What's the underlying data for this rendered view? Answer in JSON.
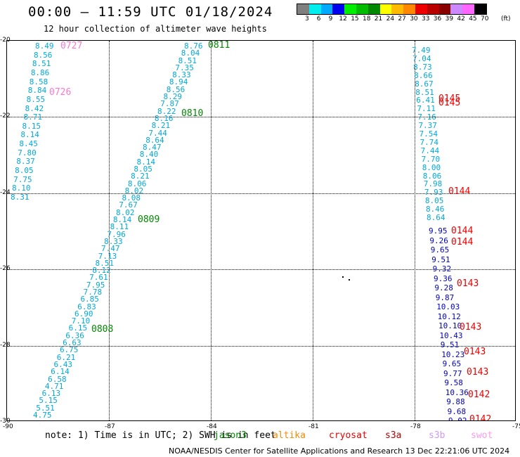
{
  "title": "00:00 – 11:59 UTC 01/18/2024",
  "subtitle": "12 hour collection of altimeter wave heights",
  "legend": {
    "labels": [
      "3",
      "6",
      "9",
      "12",
      "15",
      "18",
      "21",
      "24",
      "27",
      "30",
      "33",
      "36",
      "39",
      "42",
      "45",
      "70"
    ],
    "unit": "(ft)",
    "colors": [
      "#808080",
      "#00eeee",
      "#00aaff",
      "#0000ee",
      "#00ee00",
      "#00bb00",
      "#008800",
      "#ffff00",
      "#ffbb00",
      "#ff8800",
      "#ee0000",
      "#bb0000",
      "#880000",
      "#cc88ff",
      "#ff66ff",
      "#000000"
    ]
  },
  "axes": {
    "x_ticks": [
      "-90",
      "-87",
      "-84",
      "-81",
      "-78",
      "-75"
    ],
    "y_ticks": [
      "-20",
      "-22",
      "-24",
      "-26",
      "-28",
      "-30"
    ]
  },
  "note": "note:  1) Time is in UTC; 2) SWH is in feet",
  "satellites": [
    {
      "name": "jason3",
      "color": "#008800"
    },
    {
      "name": "altika",
      "color": "#ff8800"
    },
    {
      "name": "cryosat",
      "color": "#ee0000"
    },
    {
      "name": "s3a",
      "color": "#bb0000"
    },
    {
      "name": "s3b",
      "color": "#cc99ff"
    },
    {
      "name": "swot",
      "color": "#ff99ee"
    }
  ],
  "credit": "NOAA/NESDIS Center for Satellite Applications and Research    13 Dec 22:21:06 UTC 2024",
  "track_a": {
    "color": "#00aadd",
    "values": [
      "8.49",
      "8.56",
      "8.51",
      "8.86",
      "8.58",
      "8.84",
      "8.55",
      "8.42",
      "8.71",
      "8.15",
      "8.14",
      "8.45",
      "7.80",
      "8.37",
      "8.05",
      "7.75",
      "8.10",
      "8.31"
    ]
  },
  "track_b": {
    "color": "#00aadd",
    "values": [
      "8.76",
      "8.04",
      "8.51",
      "7.35",
      "8.33",
      "8.94",
      "8.56",
      "8.29",
      "7.87",
      "8.22",
      "8.16",
      "8.21",
      "7.44",
      "8.64",
      "8.47",
      "8.40",
      "8.14",
      "8.05",
      "8.21",
      "8.06",
      "8.02",
      "8.08",
      "7.67",
      "8.02",
      "8.14",
      "8.11",
      "7.96",
      "8.33",
      "7.47",
      "7.13",
      "8.51",
      "8.12",
      "7.61",
      "7.95",
      "7.78",
      "6.85",
      "6.83",
      "6.90",
      "7.10",
      "6.15",
      "6.36",
      "6.63",
      "6.75",
      "6.21",
      "6.43",
      "6.14",
      "6.58",
      "4.71",
      "6.13",
      "5.15",
      "5.51",
      "4.75"
    ]
  },
  "track_c_light": {
    "color": "#00aadd",
    "values": [
      "7.49",
      "7.04",
      "8.73",
      "8.66",
      "8.67",
      "8.51",
      "6.41",
      "7.11",
      "7.16",
      "7.37",
      "7.54",
      "7.74",
      "7.44",
      "7.70",
      "8.00",
      "8.06",
      "7.98",
      "7.93",
      "8.05",
      "8.46",
      "8.64"
    ]
  },
  "track_c_dark": {
    "color": "#0000cc",
    "values": [
      "9.95",
      "9.26",
      "9.65",
      "9.51",
      "9.32",
      "9.36",
      "9.28",
      "9.87",
      "10.03",
      "10.12",
      "10.10",
      "10.43",
      "9.51",
      "10.23",
      "9.65",
      "9.77",
      "9.58",
      "10.36",
      "9.88",
      "9.68",
      "9.02"
    ]
  },
  "pass_labels": [
    {
      "text": "0727",
      "color": "#ff77cc"
    },
    {
      "text": "0726",
      "color": "#ff77cc"
    },
    {
      "text": "0811",
      "color": "#008800"
    },
    {
      "text": "0810",
      "color": "#008800"
    },
    {
      "text": "0809",
      "color": "#008800"
    },
    {
      "text": "0808",
      "color": "#008800"
    },
    {
      "text": "0145",
      "color": "#ee0000"
    },
    {
      "text": "0145",
      "color": "#ee0000"
    },
    {
      "text": "0144",
      "color": "#ee0000"
    },
    {
      "text": "0144",
      "color": "#ee0000"
    },
    {
      "text": "0144",
      "color": "#ee0000"
    },
    {
      "text": "0143",
      "color": "#ee0000"
    },
    {
      "text": "0143",
      "color": "#ee0000"
    },
    {
      "text": "0143",
      "color": "#ee0000"
    },
    {
      "text": "0143",
      "color": "#ee0000"
    },
    {
      "text": "0142",
      "color": "#ee0000"
    },
    {
      "text": "0142",
      "color": "#ee0000"
    }
  ]
}
